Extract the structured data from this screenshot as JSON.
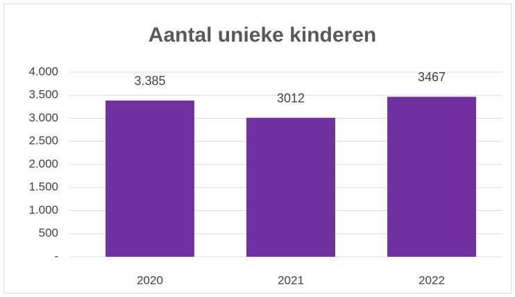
{
  "chart_data": {
    "type": "bar",
    "title": "Aantal unieke kinderen",
    "categories": [
      "2020",
      "2021",
      "2022"
    ],
    "values": [
      3385,
      3012,
      3467
    ],
    "value_labels": [
      "3.385",
      "3012",
      "3467"
    ],
    "color": "#7030a0",
    "ylim": [
      0,
      4000
    ],
    "yticks": [
      {
        "value": 0,
        "label": "-"
      },
      500,
      {
        "value": 1000,
        "label": "1.000"
      },
      {
        "value": 1500,
        "label": "1.500"
      },
      {
        "value": 2000,
        "label": "2.000"
      },
      {
        "value": 2500,
        "label": "2.500"
      },
      {
        "value": 3000,
        "label": "3.000"
      },
      {
        "value": 3500,
        "label": "3.500"
      },
      {
        "value": 4000,
        "label": "4.000"
      }
    ],
    "grid": true
  }
}
